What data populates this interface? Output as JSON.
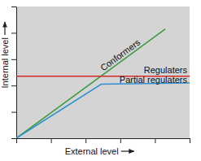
{
  "chart_data": {
    "type": "line",
    "x_label": "External level",
    "y_label": "Internal level",
    "xlim": [
      0,
      10
    ],
    "ylim": [
      0,
      10
    ],
    "xticks": [
      0,
      2,
      4,
      6,
      8,
      10
    ],
    "yticks": [
      0,
      2,
      4,
      6,
      8,
      10
    ],
    "tick_labels": false,
    "grid": false,
    "series": [
      {
        "name": "Conformers",
        "color": "#3a9a3a",
        "x": [
          0,
          8.6
        ],
        "values": [
          0,
          8.3
        ]
      },
      {
        "name": "Regulaters",
        "color": "#d62b2b",
        "x": [
          0,
          10
        ],
        "values": [
          4.7,
          4.7
        ]
      },
      {
        "name": "Partial regulaters",
        "color": "#2f8fd0",
        "x": [
          0,
          4.9,
          10
        ],
        "values": [
          0,
          4.1,
          4.2
        ]
      }
    ]
  }
}
